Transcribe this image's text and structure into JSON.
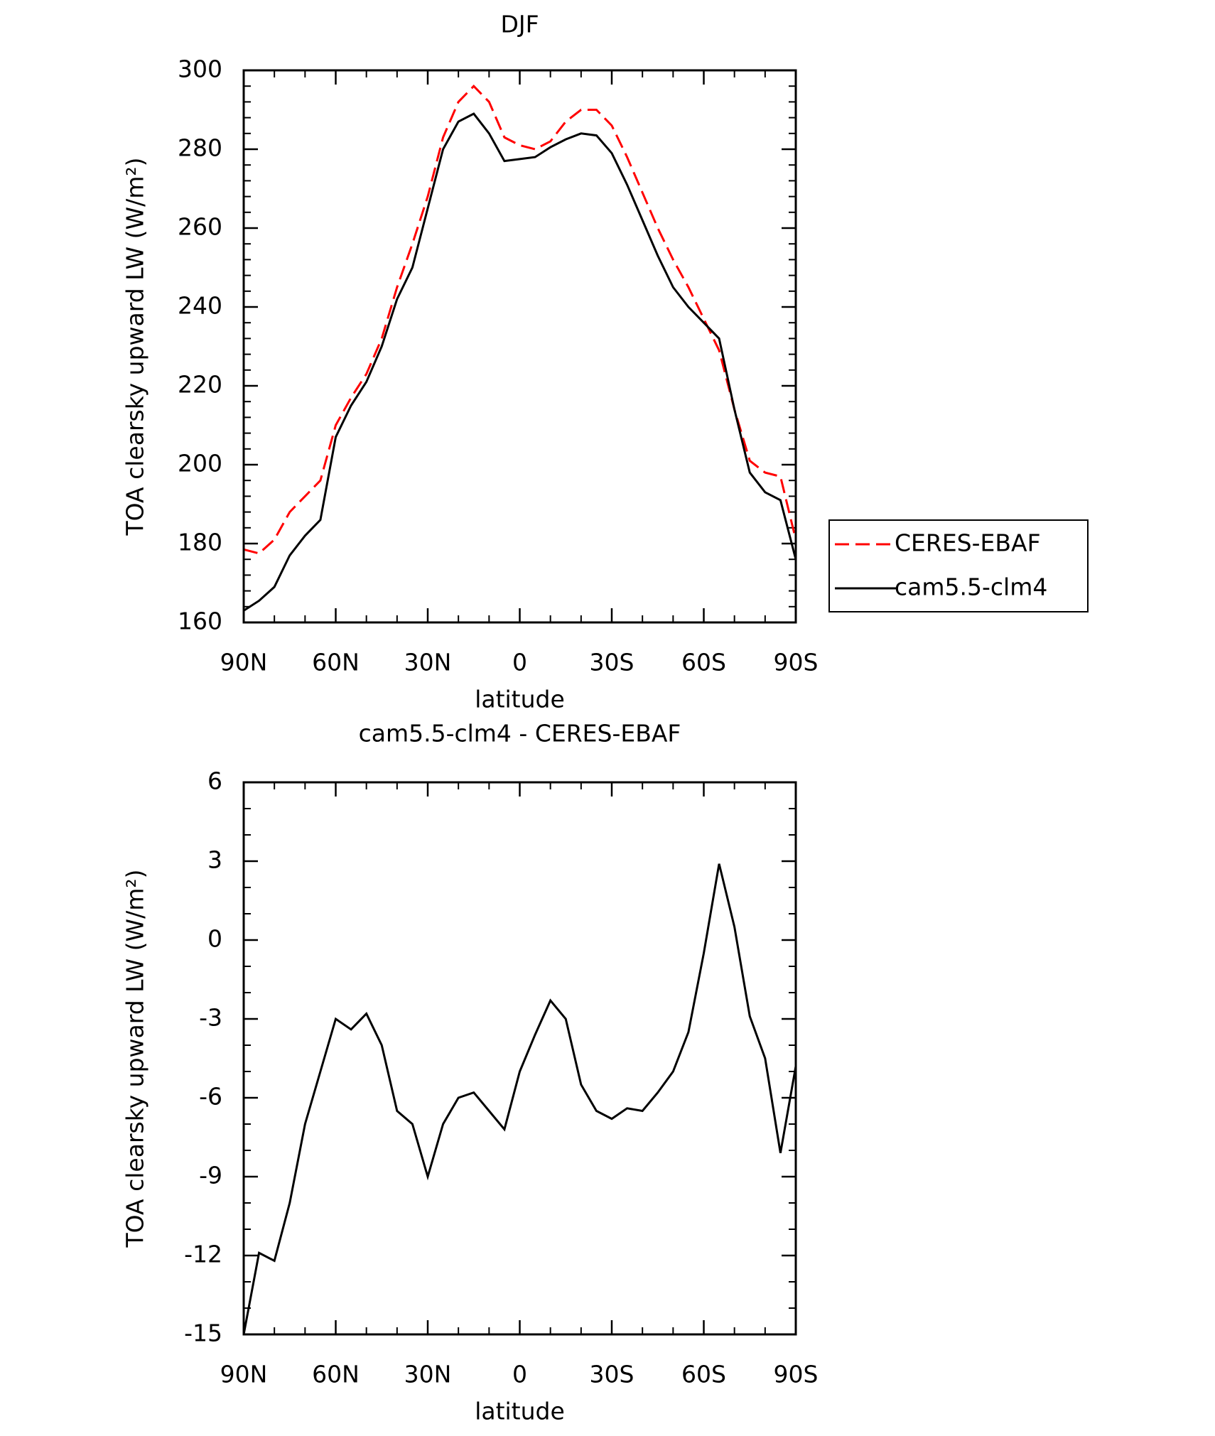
{
  "chart_data": [
    {
      "type": "line",
      "title": "DJF",
      "xlabel": "latitude",
      "ylabel": "TOA clearsky upward LW (W/m²)",
      "x": [
        90,
        85,
        80,
        75,
        70,
        65,
        60,
        55,
        50,
        45,
        40,
        35,
        30,
        25,
        20,
        15,
        10,
        5,
        0,
        -5,
        -10,
        -15,
        -20,
        -25,
        -30,
        -35,
        -40,
        -45,
        -50,
        -55,
        -60,
        -65,
        -70,
        -75,
        -80,
        -85,
        -90
      ],
      "series": [
        {
          "name": "CERES-EBAF",
          "color": "#ff0000",
          "linestyle": "dashed",
          "values": [
            178.5,
            177.5,
            181,
            188,
            192,
            196,
            210,
            217,
            223,
            232,
            245,
            256,
            268,
            283,
            292,
            296,
            292,
            283,
            281,
            280,
            282,
            287,
            290,
            290,
            286,
            278,
            269,
            260,
            252,
            245,
            237,
            229,
            214,
            201,
            198,
            197,
            181
          ]
        },
        {
          "name": "cam5.5-clm4",
          "color": "#000000",
          "linestyle": "solid",
          "values": [
            163,
            165.5,
            169,
            177,
            182,
            186,
            207,
            215,
            221,
            230,
            242,
            250,
            265,
            280,
            287,
            289,
            284,
            277,
            277.5,
            278,
            280.5,
            282.5,
            284,
            283.5,
            279,
            271,
            262,
            253,
            245,
            240,
            236,
            232,
            214,
            198,
            193,
            191,
            176
          ]
        }
      ],
      "xlim": [
        90,
        -90
      ],
      "xticks": [
        {
          "value": 90,
          "label": "90N"
        },
        {
          "value": 60,
          "label": "60N"
        },
        {
          "value": 30,
          "label": "30N"
        },
        0,
        {
          "value": -30,
          "label": "30S"
        },
        {
          "value": -60,
          "label": "60S"
        },
        {
          "value": -90,
          "label": "90S"
        }
      ],
      "ylim": [
        160,
        300
      ],
      "yticks": [
        160,
        180,
        200,
        220,
        240,
        260,
        280,
        300
      ],
      "legend": "right"
    },
    {
      "type": "line",
      "title": "cam5.5-clm4 - CERES-EBAF",
      "xlabel": "latitude",
      "ylabel": "TOA clearsky upward LW (W/m²)",
      "x": [
        90,
        85,
        80,
        75,
        70,
        65,
        60,
        55,
        50,
        45,
        40,
        35,
        30,
        25,
        20,
        15,
        10,
        5,
        0,
        -5,
        -10,
        -15,
        -20,
        -25,
        -30,
        -35,
        -40,
        -45,
        -50,
        -55,
        -60,
        -65,
        -70,
        -75,
        -80,
        -85,
        -90
      ],
      "series": [
        {
          "name": "cam5.5-clm4 - CERES-EBAF",
          "color": "#000000",
          "linestyle": "solid",
          "values": [
            -15,
            -11.9,
            -12.2,
            -10,
            -7,
            -5,
            -3,
            -3.4,
            -2.8,
            -4,
            -6.5,
            -7,
            -9,
            -7,
            -6,
            -5.8,
            -6.5,
            -7.2,
            -5,
            -3.6,
            -2.3,
            -3,
            -5.5,
            -6.5,
            -6.8,
            -6.4,
            -6.5,
            -5.8,
            -5,
            -3.5,
            -0.5,
            2.9,
            0.5,
            -2.9,
            -4.5,
            -8.1,
            -4.8
          ]
        }
      ],
      "xlim": [
        90,
        -90
      ],
      "xticks": [
        {
          "value": 90,
          "label": "90N"
        },
        {
          "value": 60,
          "label": "60N"
        },
        {
          "value": 30,
          "label": "30N"
        },
        0,
        {
          "value": -30,
          "label": "30S"
        },
        {
          "value": -60,
          "label": "60S"
        },
        {
          "value": -90,
          "label": "90S"
        }
      ],
      "ylim": [
        -15,
        6
      ],
      "yticks": [
        -15,
        -12,
        -9,
        -6,
        -3,
        0,
        3,
        6
      ]
    }
  ]
}
